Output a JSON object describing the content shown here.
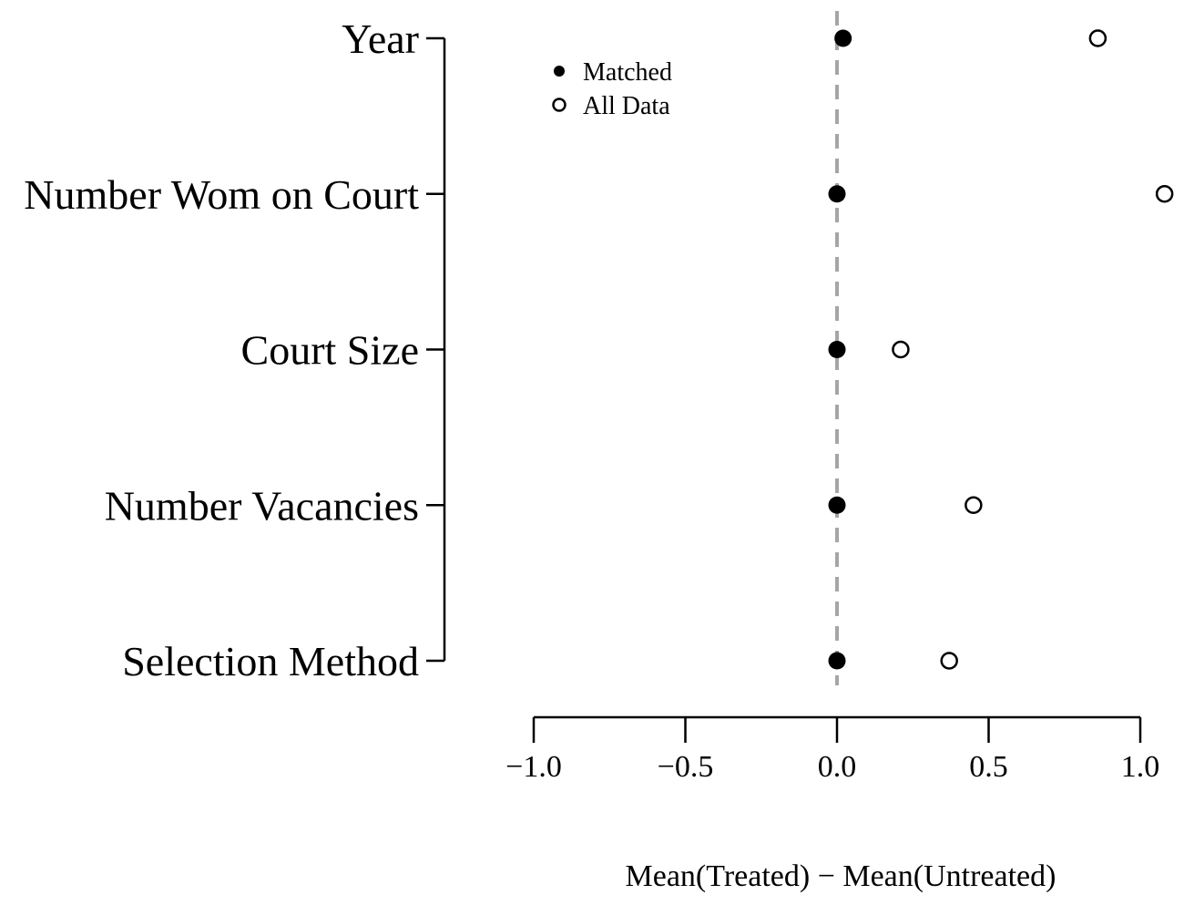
{
  "chart_data": {
    "type": "scatter",
    "title": "",
    "xlabel": "Mean(Treated) − Mean(Untreated)",
    "ylabel": "",
    "xlim": [
      -1.0,
      1.0
    ],
    "x_ticks": [
      -1.0,
      -0.5,
      0.0,
      0.5,
      1.0
    ],
    "x_tick_labels": [
      "−1.0",
      "−0.5",
      "0.0",
      "0.5",
      "1.0"
    ],
    "categories": [
      "Year",
      "Number Wom on Court",
      "Court Size",
      "Number Vacancies",
      "Selection Method"
    ],
    "series": [
      {
        "name": "Matched",
        "marker": "filled-circle",
        "values": [
          0.02,
          0.0,
          0.0,
          0.0,
          0.0
        ]
      },
      {
        "name": "All Data",
        "marker": "open-circle",
        "values": [
          0.86,
          1.08,
          0.21,
          0.45,
          0.37
        ]
      }
    ],
    "reference_line": {
      "x": 0.0,
      "style": "dashed",
      "color": "#a6a6a6"
    },
    "legend": {
      "position": "top-left"
    },
    "grid": false
  }
}
